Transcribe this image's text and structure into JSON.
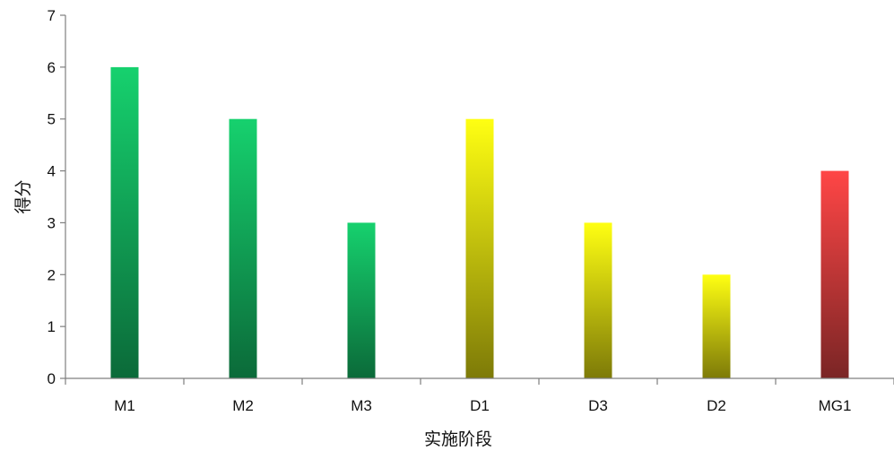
{
  "chart_data": {
    "type": "bar",
    "title": "",
    "xlabel": "实施阶段",
    "ylabel": "得分",
    "categories": [
      "M1",
      "M2",
      "M3",
      "D1",
      "D3",
      "D2",
      "MG1"
    ],
    "values": [
      6,
      5,
      3,
      5,
      3,
      2,
      4
    ],
    "ylim": [
      0,
      7
    ],
    "yticks": [
      0,
      1,
      2,
      3,
      4,
      5,
      6,
      7
    ],
    "grid": false,
    "legend": "none",
    "bar_colors": {
      "M1": {
        "top": "#16d16e",
        "bottom": "#0b6a39"
      },
      "M2": {
        "top": "#16d16e",
        "bottom": "#0b6a39"
      },
      "M3": {
        "top": "#16d16e",
        "bottom": "#0b6a39"
      },
      "D1": {
        "top": "#ffff12",
        "bottom": "#7d7a08"
      },
      "D3": {
        "top": "#ffff12",
        "bottom": "#7d7a08"
      },
      "D2": {
        "top": "#ffff12",
        "bottom": "#7d7a08"
      },
      "MG1": {
        "top": "#ff4646",
        "bottom": "#7a2525"
      }
    }
  }
}
